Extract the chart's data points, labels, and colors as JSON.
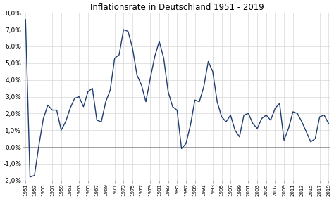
{
  "title": "Inflationsrate in Deutschland 1951 - 2019",
  "years": [
    1951,
    1952,
    1953,
    1954,
    1955,
    1956,
    1957,
    1958,
    1959,
    1960,
    1961,
    1962,
    1963,
    1964,
    1965,
    1966,
    1967,
    1968,
    1969,
    1970,
    1971,
    1972,
    1973,
    1974,
    1975,
    1976,
    1977,
    1978,
    1979,
    1980,
    1981,
    1982,
    1983,
    1984,
    1985,
    1986,
    1987,
    1988,
    1989,
    1990,
    1991,
    1992,
    1993,
    1994,
    1995,
    1996,
    1997,
    1998,
    1999,
    2000,
    2001,
    2002,
    2003,
    2004,
    2005,
    2006,
    2007,
    2008,
    2009,
    2010,
    2011,
    2012,
    2013,
    2014,
    2015,
    2016,
    2017,
    2018,
    2019
  ],
  "values": [
    7.6,
    -1.8,
    -1.7,
    0.1,
    1.7,
    2.5,
    2.2,
    2.2,
    1.0,
    1.5,
    2.3,
    2.9,
    3.0,
    2.4,
    3.3,
    3.5,
    1.6,
    1.5,
    2.7,
    3.4,
    5.3,
    5.5,
    7.0,
    6.9,
    5.9,
    4.3,
    3.7,
    2.7,
    4.1,
    5.4,
    6.3,
    5.3,
    3.3,
    2.4,
    2.2,
    -0.1,
    0.2,
    1.3,
    2.8,
    2.7,
    3.6,
    5.1,
    4.5,
    2.7,
    1.8,
    1.5,
    1.9,
    1.0,
    0.6,
    1.9,
    2.0,
    1.4,
    1.1,
    1.7,
    1.9,
    1.6,
    2.3,
    2.6,
    0.4,
    1.1,
    2.1,
    2.0,
    1.5,
    0.9,
    0.3,
    0.5,
    1.8,
    1.9,
    1.4
  ],
  "line_color": "#1f3d6e",
  "bg_color": "#ffffff",
  "plot_bg_color": "#ffffff",
  "ylim": [
    -2.0,
    8.0
  ],
  "yticks": [
    -2.0,
    -1.0,
    0.0,
    1.0,
    2.0,
    3.0,
    4.0,
    5.0,
    6.0,
    7.0,
    8.0
  ],
  "ytick_labels": [
    "-2,0%",
    "-1,0%",
    "0,0%",
    "1,0%",
    "2,0%",
    "3,0%",
    "4,0%",
    "5,0%",
    "6,0%",
    "7,0%",
    "8,0%"
  ],
  "grid_color": "#d8d8d8",
  "title_fontsize": 8.5,
  "xtick_fontsize": 5.0,
  "ytick_fontsize": 6.5,
  "linewidth": 1.0
}
